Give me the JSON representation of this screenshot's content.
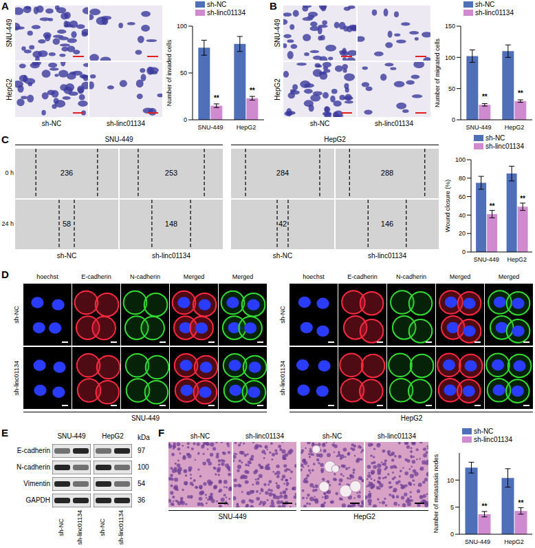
{
  "chart_data": [
    {
      "type": "bar",
      "ylabel": "Number of invaded cells",
      "categories": [
        "SNU-449",
        "HepG2"
      ],
      "ylim": [
        0,
        100
      ],
      "yticks": [
        0,
        50,
        100
      ],
      "legend": "top",
      "series": [
        {
          "name": "sh-NC",
          "color": "#4f6fb8",
          "values": [
            77,
            81
          ],
          "errors": [
            8,
            8
          ]
        },
        {
          "name": "sh-linc01134",
          "color": "#d08ad0",
          "values": [
            15,
            23
          ],
          "errors": [
            2,
            2
          ],
          "annotations": [
            "**",
            "**"
          ]
        }
      ]
    },
    {
      "type": "bar",
      "ylabel": "Number of migrated cells",
      "categories": [
        "SNU-449",
        "HepG2"
      ],
      "ylim": [
        0,
        150
      ],
      "yticks": [
        0,
        50,
        100,
        150
      ],
      "legend": "top",
      "series": [
        {
          "name": "sh-NC",
          "color": "#4f6fb8",
          "values": [
            102,
            110
          ],
          "errors": [
            10,
            10
          ]
        },
        {
          "name": "sh-linc01134",
          "color": "#d08ad0",
          "values": [
            24,
            30
          ],
          "errors": [
            2,
            2
          ],
          "annotations": [
            "**",
            "**"
          ]
        }
      ]
    },
    {
      "type": "bar",
      "ylabel": "Wound closure (%)",
      "categories": [
        "SNU-449",
        "HepG2"
      ],
      "ylim": [
        0,
        100
      ],
      "yticks": [
        0,
        20,
        40,
        60,
        80,
        100
      ],
      "legend": "top",
      "series": [
        {
          "name": "sh-NC",
          "color": "#4f6fb8",
          "values": [
            75,
            85
          ],
          "errors": [
            7,
            8
          ]
        },
        {
          "name": "sh-linc01134",
          "color": "#d08ad0",
          "values": [
            41,
            49
          ],
          "errors": [
            4,
            4
          ],
          "annotations": [
            "**",
            "**"
          ]
        }
      ]
    },
    {
      "type": "bar",
      "ylabel": "Number of metastasis nodes",
      "categories": [
        "SNU-449",
        "HepG2"
      ],
      "ylim": [
        0,
        15
      ],
      "yticks": [
        0,
        5,
        10
      ],
      "legend": "top",
      "series": [
        {
          "name": "sh-NC",
          "color": "#4f6fb8",
          "values": [
            12.3,
            10.4
          ],
          "errors": [
            1,
            1.7
          ]
        },
        {
          "name": "sh-linc01134",
          "color": "#d08ad0",
          "values": [
            3.7,
            4.3
          ],
          "errors": [
            0.5,
            0.6
          ],
          "annotations": [
            "**",
            "**"
          ]
        }
      ]
    }
  ],
  "panels": {
    "A": {
      "rows": [
        "SNU-449",
        "HepG2"
      ],
      "columns": [
        "sh-NC",
        "sh-linc01134"
      ]
    },
    "B": {
      "rows": [
        "SNU-449",
        "HepG2"
      ],
      "columns": [
        "sh-NC",
        "sh-linc01134"
      ]
    },
    "C": {
      "groups": [
        "SNU-449",
        "HepG2"
      ],
      "rows": [
        "0 h",
        "24 h"
      ],
      "columns": [
        "sh-NC",
        "sh-linc01134"
      ],
      "wound_widths": [
        [
          236,
          253,
          284,
          288
        ],
        [
          58,
          148,
          42,
          146
        ]
      ]
    },
    "D": {
      "groups": [
        "SNU-449",
        "HepG2"
      ],
      "rows": [
        "sh-NC",
        "sh-linc01134"
      ],
      "columns": [
        "hoechst",
        "E-cadherin",
        "N-cadherin",
        "Merged",
        "Merged"
      ]
    },
    "E": {
      "groups": [
        "SNU-449",
        "HepG2"
      ],
      "lanes": [
        "sh-NC",
        "sh-linc01134"
      ],
      "unit": "kDa",
      "proteins": [
        {
          "name": "E-cadherin",
          "kda": 97
        },
        {
          "name": "N-cadherin",
          "kda": 100
        },
        {
          "name": "Vimentin",
          "kda": 54
        },
        {
          "name": "GAPDH",
          "kda": 36
        }
      ]
    },
    "F": {
      "groups": [
        "SNU-449",
        "HepG2"
      ],
      "columns": [
        "sh-NC",
        "sh-linc01134"
      ]
    }
  }
}
